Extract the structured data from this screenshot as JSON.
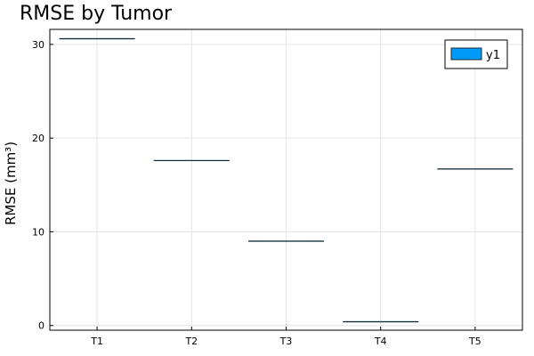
{
  "chart_data": {
    "type": "box",
    "title": "RMSE by Tumor",
    "xlabel": "",
    "ylabel": "RMSE (mm³)",
    "categories": [
      "T1",
      "T2",
      "T3",
      "T4",
      "T5"
    ],
    "values": [
      30.6,
      17.6,
      9.0,
      0.4,
      16.7
    ],
    "ylim": [
      -0.5,
      31.6
    ],
    "yticks": [
      0,
      10,
      20,
      30
    ],
    "grid": true,
    "legend": {
      "position": "top-right",
      "entries": [
        "y1"
      ]
    },
    "colors": {
      "fill": "#009af9",
      "line": "#1a2a33",
      "grid": "#e5e5e5",
      "frame": "#000000"
    }
  }
}
